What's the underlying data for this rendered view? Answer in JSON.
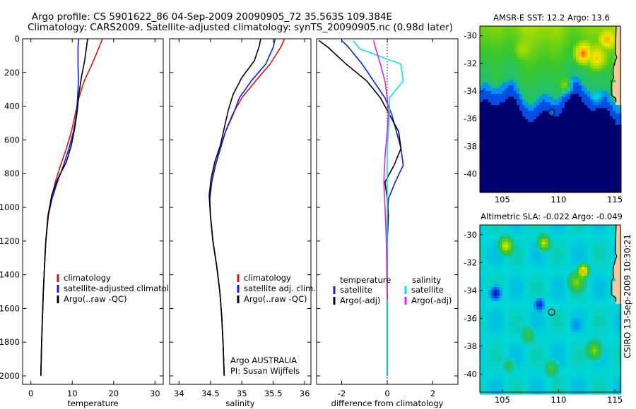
{
  "header": {
    "line1": "Argo profile: CS 5901622_86 04-Sep-2009 20090905_72 35.563S 109.384E",
    "line2": "Climatology: CARS2009. Satellite-adjusted climatology: synTS_20090905.nc (0.98d later)"
  },
  "side_label": "CSIRO 13-Sep-2009 10:30:21",
  "colors": {
    "climatology": "#dd1111",
    "satellite": "#0a1ee6",
    "argo": "#000000",
    "sal_satellite": "#00e6e6",
    "sal_argo": "#e61ee6",
    "land": "#f6c8a0"
  },
  "chart_data": [
    {
      "type": "line",
      "panel": "temperature",
      "xlabel": "temperature",
      "xlim": [
        -2,
        32
      ],
      "xticks": [
        "0",
        "10",
        "20",
        "30"
      ],
      "ylim": [
        0,
        2050
      ],
      "yticks": [
        "0",
        "200",
        "400",
        "600",
        "800",
        "1000",
        "1200",
        "1400",
        "1600",
        "1800",
        "2000"
      ],
      "inverted_y": true,
      "legend": [
        "climatology",
        "satellite-adjusted climatology",
        "Argo(..raw -QC)"
      ],
      "legend_placement": "lower-middle",
      "series": [
        {
          "name": "climatology",
          "color": "#dd1111",
          "x": [
            17.3,
            16.5,
            14.8,
            12.9,
            11.6,
            10.7,
            9.8,
            8.6,
            7.2,
            5.9,
            4.9,
            4.1,
            3.6,
            3.3,
            3.0,
            2.8,
            2.6,
            2.4
          ],
          "y": [
            0,
            50,
            150,
            250,
            350,
            450,
            550,
            650,
            750,
            850,
            950,
            1050,
            1200,
            1350,
            1500,
            1650,
            1800,
            2000
          ]
        },
        {
          "name": "satellite-adjusted climatology",
          "color": "#0a1ee6",
          "x": [
            11.6,
            11.4,
            11.4,
            11.5,
            11.3,
            11.0,
            10.3,
            9.2,
            7.9,
            6.4,
            5.1,
            4.2,
            3.6,
            3.3,
            3.0,
            2.8,
            2.6,
            2.4
          ],
          "y": [
            0,
            50,
            150,
            250,
            350,
            450,
            550,
            650,
            750,
            850,
            950,
            1050,
            1200,
            1350,
            1500,
            1650,
            1800,
            2000
          ]
        },
        {
          "name": "Argo(..raw -QC)",
          "color": "#000000",
          "x": [
            13.7,
            13.5,
            13.0,
            12.2,
            11.6,
            11.2,
            10.6,
            9.8,
            8.6,
            6.5,
            5.0,
            4.2,
            3.6,
            3.3,
            3.0,
            2.8,
            2.6,
            2.4
          ],
          "y": [
            0,
            40,
            130,
            230,
            330,
            430,
            530,
            630,
            730,
            830,
            930,
            1050,
            1200,
            1350,
            1500,
            1650,
            1800,
            2000
          ]
        }
      ]
    },
    {
      "type": "line",
      "panel": "salinity",
      "xlabel": "salinity",
      "xlim": [
        33.85,
        36.1
      ],
      "xticks": [
        "34",
        "34.5",
        "35",
        "35.5",
        "36"
      ],
      "ylim": [
        0,
        2050
      ],
      "inverted_y": true,
      "legend": [
        "climatology",
        "satellite adj. clim.",
        "Argo(..raw -QC)"
      ],
      "legend_placement": "lower-middle",
      "annotation": [
        "Argo AUSTRALIA",
        "PI: Susan Wijffels"
      ],
      "series": [
        {
          "name": "climatology",
          "color": "#dd1111",
          "x": [
            35.68,
            35.62,
            35.45,
            35.22,
            35.0,
            34.85,
            34.74,
            34.66,
            34.58,
            34.52,
            34.49,
            34.5,
            34.54,
            34.6,
            34.65,
            34.68,
            34.7,
            34.72
          ],
          "y": [
            0,
            50,
            150,
            250,
            350,
            450,
            550,
            650,
            750,
            850,
            950,
            1050,
            1200,
            1350,
            1500,
            1650,
            1800,
            2000
          ]
        },
        {
          "name": "satellite adj. clim.",
          "color": "#0a1ee6",
          "x": [
            35.53,
            35.5,
            35.38,
            35.15,
            34.96,
            34.86,
            34.74,
            34.66,
            34.58,
            34.52,
            34.49,
            34.5,
            34.54,
            34.6,
            34.65,
            34.68,
            34.7,
            34.72
          ],
          "y": [
            0,
            50,
            150,
            250,
            350,
            450,
            550,
            650,
            750,
            850,
            950,
            1050,
            1200,
            1350,
            1500,
            1650,
            1800,
            2000
          ]
        },
        {
          "name": "Argo(..raw -QC)",
          "color": "#000000",
          "x": [
            35.3,
            35.28,
            35.2,
            35.0,
            34.86,
            34.78,
            34.72,
            34.66,
            34.57,
            34.51,
            34.48,
            34.5,
            34.54,
            34.6,
            34.65,
            34.68,
            34.7,
            34.72
          ],
          "y": [
            0,
            40,
            130,
            230,
            330,
            430,
            530,
            630,
            730,
            830,
            930,
            1050,
            1200,
            1350,
            1500,
            1650,
            1800,
            2000
          ]
        }
      ]
    },
    {
      "type": "line",
      "panel": "difference",
      "xlabel": "difference from climatology",
      "xlim": [
        -3.1,
        3.1
      ],
      "xticks": [
        "-2",
        "0",
        "2"
      ],
      "ylim": [
        0,
        2050
      ],
      "inverted_y": true,
      "reference_line_x": 0,
      "legend_left": [
        "temperature",
        "satellite",
        "Argo(-adj)"
      ],
      "legend_right": [
        "salinity",
        "satellite",
        "Argo(-adj)"
      ],
      "legend_placement": "lower-middle",
      "series": [
        {
          "name": "temperature satellite",
          "color": "#0a1ee6",
          "x": [
            -2.0,
            -1.7,
            -1.1,
            -0.6,
            -0.1,
            0.2,
            0.4,
            0.6,
            0.7,
            0.35,
            0.05,
            0.0,
            0.0,
            0.0,
            0.0,
            0.0,
            0.0
          ],
          "y": [
            10,
            50,
            150,
            250,
            350,
            450,
            550,
            650,
            750,
            850,
            950,
            1050,
            1200,
            1400,
            1600,
            1800,
            2000
          ]
        },
        {
          "name": "temperature Argo(-adj)",
          "color": "#000000",
          "x": [
            -3.0,
            -2.6,
            -1.8,
            -0.9,
            -0.3,
            0.1,
            0.5,
            0.6,
            0.3,
            -0.1,
            0.0,
            0.05,
            0.0,
            0.0,
            0.0,
            0.0,
            0.0
          ],
          "y": [
            10,
            50,
            150,
            250,
            350,
            450,
            550,
            650,
            750,
            850,
            950,
            1050,
            1200,
            1400,
            1600,
            1800,
            2000
          ]
        },
        {
          "name": "salinity satellite",
          "color": "#00e6e6",
          "x": [
            -1.5,
            -1.2,
            0.6,
            0.7,
            0.1,
            0.1,
            0.05,
            0.0,
            0.0,
            0.0,
            0.0,
            0.0,
            0.0,
            0.0,
            0.0
          ],
          "y": [
            10,
            60,
            150,
            250,
            350,
            450,
            550,
            650,
            800,
            950,
            1100,
            1300,
            1500,
            1800,
            2000
          ]
        },
        {
          "name": "salinity Argo(-adj)",
          "color": "#e61ee6",
          "x": [
            -0.6,
            -0.5,
            -0.3,
            -0.1,
            0.0,
            0.05,
            0.0,
            -0.1,
            -0.15,
            -0.1,
            -0.05,
            0.0
          ],
          "y": [
            10,
            60,
            150,
            250,
            350,
            450,
            550,
            700,
            850,
            1000,
            1150,
            1550
          ]
        }
      ]
    },
    {
      "type": "heatmap",
      "panel": "sst_map",
      "title": "AMSR-E SST: 12.2 Argo: 13.6",
      "xticks": [
        "105",
        "110",
        "115"
      ],
      "yticks": [
        "-30",
        "-32",
        "-34",
        "-36",
        "-38",
        "-40"
      ],
      "xlim": [
        103,
        115.5
      ],
      "ylim": [
        -41.3,
        -29.3
      ],
      "marker": {
        "lon": 109.384,
        "lat": -35.563
      }
    },
    {
      "type": "heatmap",
      "panel": "sla_map",
      "title": "Altimetric SLA: -0.022 Argo: -0.049",
      "xticks": [
        "105",
        "110",
        "115"
      ],
      "yticks": [
        "-30",
        "-32",
        "-34",
        "-36",
        "-38",
        "-40"
      ],
      "xlim": [
        103,
        115.5
      ],
      "ylim": [
        -41.3,
        -29.3
      ],
      "marker": {
        "lon": 109.384,
        "lat": -35.563
      }
    }
  ]
}
